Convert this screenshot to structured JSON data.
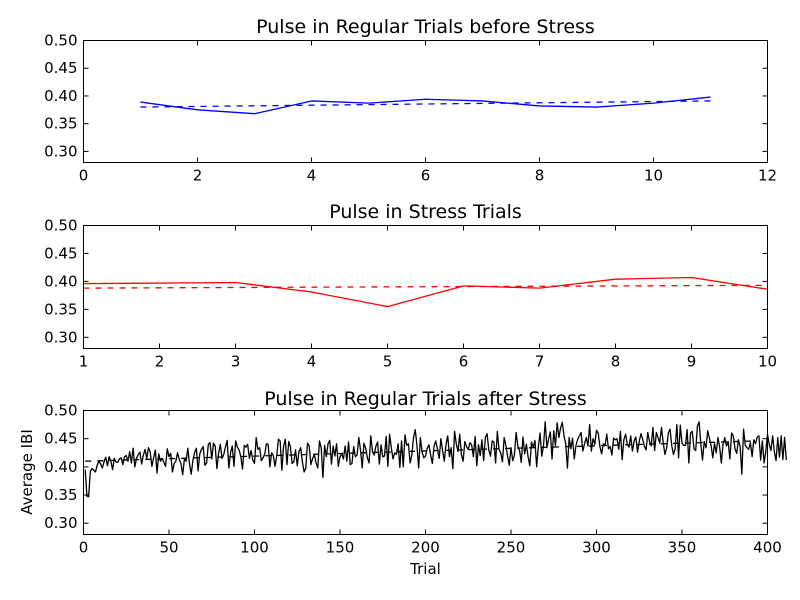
{
  "chart_data": [
    {
      "type": "line",
      "title": "Pulse in Regular Trials before Stress",
      "xlabel": "",
      "ylabel": "",
      "xlim": [
        0,
        12
      ],
      "ylim": [
        0.28,
        0.5
      ],
      "xticks": [
        "0",
        "2",
        "4",
        "6",
        "8",
        "10",
        "12"
      ],
      "yticks": [
        "0.30",
        "0.35",
        "0.40",
        "0.45",
        "0.50"
      ],
      "grid": false,
      "color": "#0000ff",
      "series": [
        {
          "style": "solid",
          "x": [
            1,
            2,
            3,
            4,
            5,
            6,
            7,
            8,
            9,
            10,
            11
          ],
          "y": [
            0.389,
            0.375,
            0.368,
            0.391,
            0.387,
            0.394,
            0.391,
            0.382,
            0.38,
            0.387,
            0.398
          ]
        },
        {
          "style": "dashed",
          "x": [
            1,
            11
          ],
          "y": [
            0.38,
            0.391
          ]
        }
      ]
    },
    {
      "type": "line",
      "title": "Pulse in Stress Trials",
      "xlabel": "",
      "ylabel": "",
      "xlim": [
        1,
        10
      ],
      "ylim": [
        0.28,
        0.5
      ],
      "xticks": [
        "1",
        "2",
        "3",
        "4",
        "5",
        "6",
        "7",
        "8",
        "9",
        "10"
      ],
      "yticks": [
        "0.30",
        "0.35",
        "0.40",
        "0.45",
        "0.50"
      ],
      "grid": false,
      "color": "#ff0000",
      "series": [
        {
          "style": "solid",
          "x": [
            1,
            2,
            3,
            4,
            5,
            6,
            7,
            8,
            9,
            10
          ],
          "y": [
            0.396,
            0.397,
            0.398,
            0.381,
            0.355,
            0.392,
            0.388,
            0.404,
            0.407,
            0.386
          ]
        },
        {
          "style": "dashed",
          "x": [
            1,
            10
          ],
          "y": [
            0.388,
            0.393
          ]
        }
      ]
    },
    {
      "type": "line",
      "title": "Pulse in Regular Trials after Stress",
      "xlabel": "Trial",
      "ylabel": "Average IBI",
      "xlim": [
        0,
        400
      ],
      "ylim": [
        0.28,
        0.5
      ],
      "xticks": [
        "0",
        "50",
        "100",
        "150",
        "200",
        "250",
        "300",
        "350",
        "400"
      ],
      "yticks": [
        "0.30",
        "0.35",
        "0.40",
        "0.45",
        "0.50"
      ],
      "grid": false,
      "color": "#000000",
      "series": [
        {
          "style": "solid",
          "x_start": 1,
          "x_step": 1,
          "y": [
            0.395,
            0.348,
            0.347,
            0.392,
            0.397,
            0.394,
            0.391,
            0.403,
            0.41,
            0.405,
            0.398,
            0.409,
            0.417,
            0.402,
            0.418,
            0.41,
            0.395,
            0.415,
            0.409,
            0.408,
            0.414,
            0.416,
            0.404,
            0.418,
            0.42,
            0.41,
            0.427,
            0.407,
            0.433,
            0.4,
            0.415,
            0.422,
            0.426,
            0.405,
            0.421,
            0.431,
            0.415,
            0.434,
            0.426,
            0.401,
            0.416,
            0.43,
            0.389,
            0.423,
            0.41,
            0.415,
            0.408,
            0.401,
            0.432,
            0.418,
            0.424,
            0.391,
            0.406,
            0.41,
            0.425,
            0.413,
            0.406,
            0.386,
            0.414,
            0.41,
            0.433,
            0.405,
            0.387,
            0.412,
            0.426,
            0.433,
            0.393,
            0.423,
            0.431,
            0.436,
            0.403,
            0.407,
            0.44,
            0.443,
            0.414,
            0.442,
            0.437,
            0.397,
            0.424,
            0.44,
            0.415,
            0.422,
            0.435,
            0.447,
            0.398,
            0.425,
            0.437,
            0.401,
            0.446,
            0.435,
            0.43,
            0.418,
            0.396,
            0.438,
            0.435,
            0.44,
            0.415,
            0.429,
            0.412,
            0.406,
            0.452,
            0.431,
            0.434,
            0.411,
            0.416,
            0.423,
            0.441,
            0.44,
            0.4,
            0.425,
            0.42,
            0.401,
            0.42,
            0.449,
            0.446,
            0.394,
            0.436,
            0.449,
            0.404,
            0.445,
            0.436,
            0.406,
            0.409,
            0.43,
            0.402,
            0.427,
            0.434,
            0.409,
            0.391,
            0.398,
            0.442,
            0.437,
            0.404,
            0.415,
            0.422,
            0.407,
            0.398,
            0.446,
            0.434,
            0.381,
            0.438,
            0.418,
            0.441,
            0.447,
            0.405,
            0.437,
            0.419,
            0.441,
            0.401,
            0.418,
            0.423,
            0.414,
            0.437,
            0.41,
            0.444,
            0.404,
            0.406,
            0.436,
            0.418,
            0.421,
            0.452,
            0.43,
            0.398,
            0.442,
            0.433,
            0.416,
            0.407,
            0.455,
            0.427,
            0.421,
            0.437,
            0.444,
            0.405,
            0.439,
            0.418,
            0.419,
            0.454,
            0.401,
            0.458,
            0.434,
            0.414,
            0.425,
            0.422,
            0.441,
            0.399,
            0.446,
            0.4,
            0.457,
            0.438,
            0.441,
            0.407,
            0.421,
            0.452,
            0.466,
            0.438,
            0.398,
            0.452,
            0.427,
            0.416,
            0.419,
            0.433,
            0.439,
            0.421,
            0.406,
            0.437,
            0.446,
            0.431,
            0.415,
            0.45,
            0.429,
            0.41,
            0.44,
            0.455,
            0.418,
            0.434,
            0.397,
            0.463,
            0.441,
            0.427,
            0.458,
            0.422,
            0.41,
            0.445,
            0.436,
            0.431,
            0.443,
            0.439,
            0.418,
            0.454,
            0.402,
            0.439,
            0.42,
            0.448,
            0.411,
            0.452,
            0.459,
            0.43,
            0.419,
            0.446,
            0.444,
            0.407,
            0.463,
            0.431,
            0.425,
            0.409,
            0.452,
            0.438,
            0.419,
            0.403,
            0.434,
            0.411,
            0.421,
            0.461,
            0.437,
            0.429,
            0.408,
            0.453,
            0.423,
            0.44,
            0.418,
            0.402,
            0.444,
            0.434,
            0.447,
            0.4,
            0.436,
            0.46,
            0.419,
            0.437,
            0.48,
            0.434,
            0.45,
            0.462,
            0.414,
            0.464,
            0.438,
            0.478,
            0.452,
            0.469,
            0.479,
            0.455,
            0.441,
            0.398,
            0.452,
            0.432,
            0.451,
            0.414,
            0.438,
            0.449,
            0.455,
            0.461,
            0.428,
            0.441,
            0.452,
            0.437,
            0.475,
            0.428,
            0.45,
            0.44,
            0.465,
            0.46,
            0.436,
            0.423,
            0.441,
            0.438,
            0.458,
            0.432,
            0.436,
            0.421,
            0.451,
            0.448,
            0.45,
            0.431,
            0.463,
            0.413,
            0.448,
            0.458,
            0.44,
            0.435,
            0.455,
            0.428,
            0.446,
            0.453,
            0.426,
            0.445,
            0.459,
            0.449,
            0.437,
            0.43,
            0.461,
            0.445,
            0.437,
            0.47,
            0.429,
            0.461,
            0.452,
            0.442,
            0.47,
            0.444,
            0.422,
            0.433,
            0.46,
            0.467,
            0.438,
            0.422,
            0.432,
            0.475,
            0.416,
            0.474,
            0.442,
            0.438,
            0.438,
            0.466,
            0.407,
            0.46,
            0.463,
            0.432,
            0.429,
            0.472,
            0.48,
            0.442,
            0.412,
            0.445,
            0.434,
            0.464,
            0.451,
            0.438,
            0.416,
            0.442,
            0.425,
            0.452,
            0.436,
            0.407,
            0.44,
            0.452,
            0.437,
            0.445,
            0.414,
            0.46,
            0.455,
            0.432,
            0.424,
            0.448,
            0.436,
            0.387,
            0.467,
            0.438,
            0.434,
            0.431,
            0.443,
            0.418,
            0.448,
            0.441,
            0.453,
            0.455,
            0.412,
            0.446,
            0.407,
            0.427,
            0.458,
            0.44,
            0.429,
            0.455,
            0.427,
            0.411,
            0.452,
            0.417,
            0.455,
            0.413,
            0.452,
            0.412
          ]
        },
        {
          "style": "dashed",
          "x": [
            1,
            393
          ],
          "y": [
            0.41,
            0.446
          ]
        }
      ]
    }
  ]
}
